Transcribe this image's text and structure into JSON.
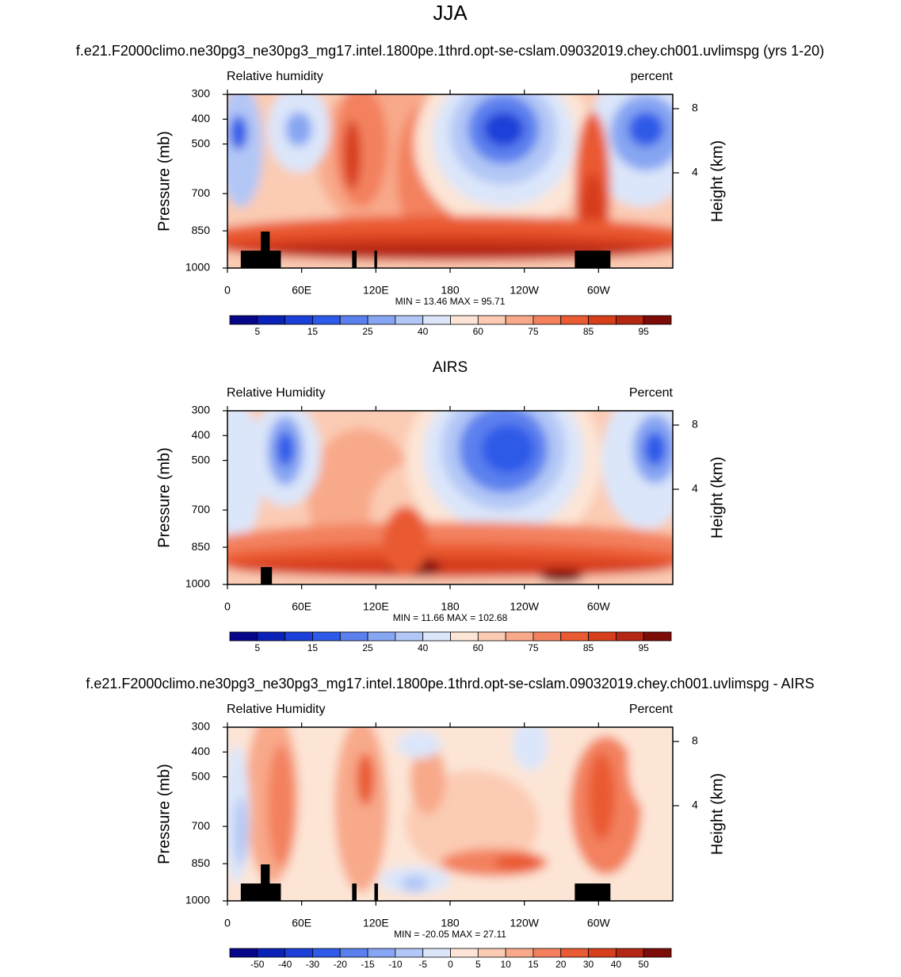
{
  "page_title": "JJA",
  "chart_data": [
    {
      "type": "contour",
      "title": "f.e21.F2000climo.ne30pg3_ne30pg3_mg17.intel.1800pe.1thrd.opt-se-cslam.09032019.chey.ch001.uvlimspg (yrs 1-20)",
      "left_label": "Relative humidity",
      "right_label": "percent",
      "ylabel": "Pressure (mb)",
      "y2label": "Height (km)",
      "stats": "MIN =  13.46  MAX =  95.71",
      "xlim": [
        0,
        360
      ],
      "xticks": [
        0,
        {
          "value": 60,
          "label": "60E"
        },
        {
          "value": 120,
          "label": "120E"
        },
        180,
        {
          "value": 240,
          "label": "120W"
        },
        {
          "value": 300,
          "label": "60W"
        }
      ],
      "ylim": [
        1000,
        300
      ],
      "yticks": [
        300,
        400,
        500,
        700,
        850,
        1000
      ],
      "y2lim": [
        -1.93,
        8.89
      ],
      "y2ticks": [
        4,
        8
      ],
      "levels": [
        5,
        10,
        15,
        20,
        25,
        30,
        40,
        50,
        60,
        70,
        75,
        80,
        85,
        90,
        95
      ],
      "colorbar_ticks": [
        5,
        15,
        25,
        40,
        60,
        75,
        85,
        95
      ],
      "colors": [
        "#06068a",
        "#0b22b8",
        "#1b3fd8",
        "#2d5ae8",
        "#5b80ee",
        "#86a5f2",
        "#b2c7f6",
        "#dce6fa",
        "#fde5d6",
        "#fbcbb3",
        "#f8a98a",
        "#f3815e",
        "#ea5a33",
        "#d73e1c",
        "#b42713",
        "#7d0b08"
      ]
    },
    {
      "type": "contour",
      "title": "AIRS",
      "left_label": "Relative Humidity",
      "right_label": "Percent",
      "ylabel": "Pressure (mb)",
      "y2label": "Height (km)",
      "stats": "MIN =  11.66  MAX =  102.68",
      "xlim": [
        0,
        360
      ],
      "xticks": [
        0,
        {
          "value": 60,
          "label": "60E"
        },
        {
          "value": 120,
          "label": "120E"
        },
        180,
        {
          "value": 240,
          "label": "120W"
        },
        {
          "value": 300,
          "label": "60W"
        }
      ],
      "ylim": [
        1000,
        300
      ],
      "yticks": [
        300,
        400,
        500,
        700,
        850,
        1000
      ],
      "y2lim": [
        -1.93,
        8.89
      ],
      "y2ticks": [
        4,
        8
      ],
      "levels": [
        5,
        10,
        15,
        20,
        25,
        30,
        40,
        50,
        60,
        70,
        75,
        80,
        85,
        90,
        95
      ],
      "colorbar_ticks": [
        5,
        15,
        25,
        40,
        60,
        75,
        85,
        95
      ],
      "colors": [
        "#06068a",
        "#0b22b8",
        "#1b3fd8",
        "#2d5ae8",
        "#5b80ee",
        "#86a5f2",
        "#b2c7f6",
        "#dce6fa",
        "#fde5d6",
        "#fbcbb3",
        "#f8a98a",
        "#f3815e",
        "#ea5a33",
        "#d73e1c",
        "#b42713",
        "#7d0b08"
      ]
    },
    {
      "type": "contour",
      "title": "f.e21.F2000climo.ne30pg3_ne30pg3_mg17.intel.1800pe.1thrd.opt-se-cslam.09032019.chey.ch001.uvlimspg - AIRS",
      "left_label": "Relative Humidity",
      "right_label": "Percent",
      "ylabel": "Pressure (mb)",
      "y2label": "Height (km)",
      "stats": "MIN = -20.05  MAX =  27.11",
      "xlim": [
        0,
        360
      ],
      "xticks": [
        0,
        {
          "value": 60,
          "label": "60E"
        },
        {
          "value": 120,
          "label": "120E"
        },
        180,
        {
          "value": 240,
          "label": "120W"
        },
        {
          "value": 300,
          "label": "60W"
        }
      ],
      "ylim": [
        1000,
        300
      ],
      "yticks": [
        300,
        400,
        500,
        700,
        850,
        1000
      ],
      "y2lim": [
        -1.93,
        8.89
      ],
      "y2ticks": [
        4,
        8
      ],
      "levels": [
        -50,
        -40,
        -30,
        -20,
        -15,
        -10,
        -5,
        0,
        5,
        10,
        15,
        20,
        30,
        40,
        50
      ],
      "colorbar_ticks": [
        -50,
        -40,
        -30,
        -20,
        -15,
        -10,
        -5,
        0,
        5,
        10,
        15,
        20,
        30,
        40,
        50
      ],
      "colors": [
        "#06068a",
        "#0b22b8",
        "#1b3fd8",
        "#2d5ae8",
        "#5b80ee",
        "#86a5f2",
        "#b2c7f6",
        "#dce6fa",
        "#fde5d6",
        "#fbcbb3",
        "#f8a98a",
        "#f3815e",
        "#ea5a33",
        "#d73e1c",
        "#b42713",
        "#7d0b08"
      ]
    }
  ]
}
